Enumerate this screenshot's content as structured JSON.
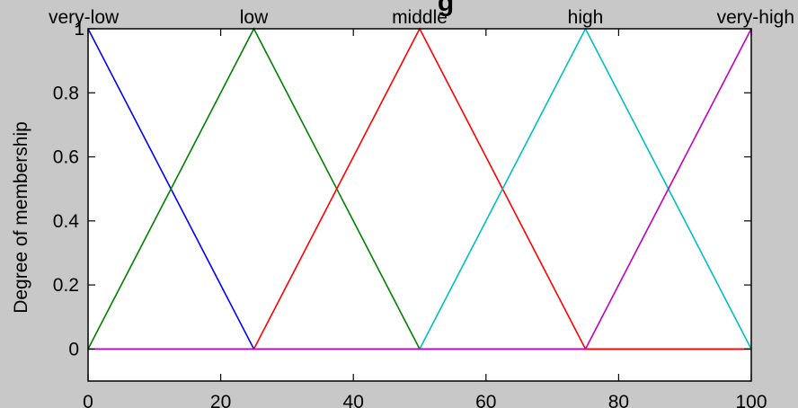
{
  "colors": {
    "figure_background": "#c8c8c8",
    "axes_background": "#ffffff",
    "axes_border": "#000000"
  },
  "title_fragment": "g",
  "chart_data": {
    "type": "line",
    "title": "",
    "xlabel": "",
    "ylabel": "Degree of membership",
    "xlim": [
      0,
      100
    ],
    "ylim": [
      -0.1,
      1
    ],
    "x_ticks": [
      0,
      20,
      40,
      60,
      80,
      100
    ],
    "x_tick_labels": [
      "0",
      "20",
      "40",
      "60",
      "80",
      "100"
    ],
    "y_ticks": [
      0,
      0.2,
      0.4,
      0.6,
      0.8,
      1
    ],
    "y_tick_labels": [
      "0",
      "0.2",
      "0.4",
      "0.6",
      "0.8",
      "1"
    ],
    "grid": false,
    "legend": "none",
    "series": [
      {
        "name": "very-low",
        "color": "#0000ff",
        "x": [
          0,
          25,
          100
        ],
        "y": [
          1,
          0,
          0
        ]
      },
      {
        "name": "low",
        "color": "#008000",
        "x": [
          0,
          25,
          50,
          100
        ],
        "y": [
          0,
          1,
          0,
          0
        ]
      },
      {
        "name": "middle",
        "color": "#ff0000",
        "x": [
          0,
          25,
          50,
          75,
          100
        ],
        "y": [
          0,
          0,
          1,
          0,
          0
        ]
      },
      {
        "name": "high",
        "color": "#00bfbf",
        "x": [
          0,
          50,
          75,
          100
        ],
        "y": [
          0,
          0,
          1,
          0
        ]
      },
      {
        "name": "very-high",
        "color": "#bf00bf",
        "x": [
          0,
          75,
          100
        ],
        "y": [
          0,
          0,
          1
        ]
      }
    ],
    "annotations": [
      {
        "text": "very-low",
        "x": 0,
        "y": 1
      },
      {
        "text": "low",
        "x": 25,
        "y": 1
      },
      {
        "text": "middle",
        "x": 50,
        "y": 1
      },
      {
        "text": "high",
        "x": 75,
        "y": 1
      },
      {
        "text": "very-high",
        "x": 100,
        "y": 1
      }
    ]
  }
}
